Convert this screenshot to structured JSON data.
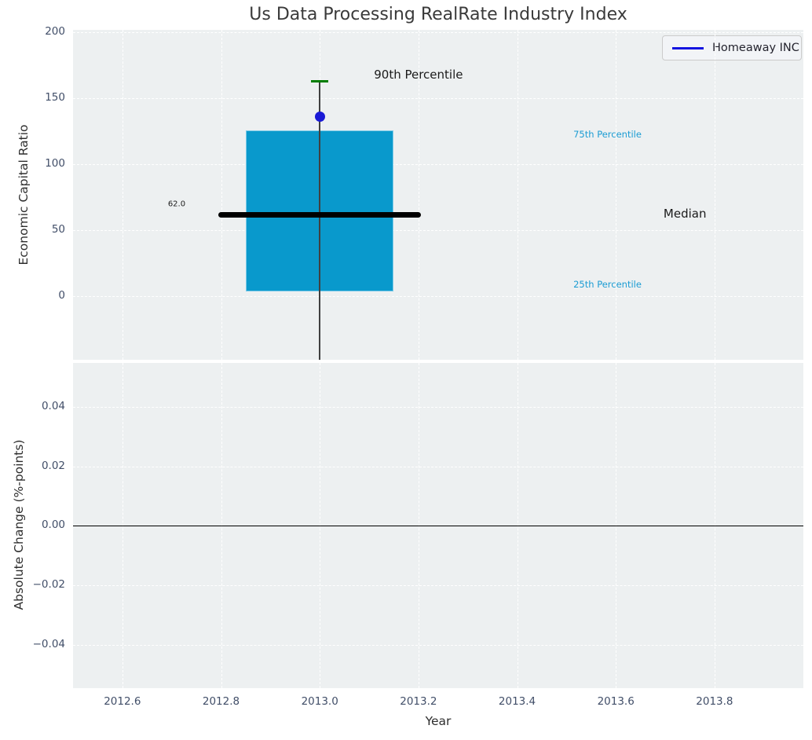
{
  "title": "Us Data Processing RealRate Industry Index",
  "legend": {
    "label": "Homeaway INC"
  },
  "colors": {
    "plot_bg": "#edf0f1",
    "grid": "#ffffff",
    "box_fill": "#0999cc",
    "box_edge": "#7ecbe8",
    "median_line": "#000000",
    "whisker": "#404040",
    "cap_90th": "#007d00",
    "company_point": "#1a1ad6",
    "legend_line": "#1414e0",
    "legend_bg": "#f2f4f7",
    "legend_border": "#cbcbcb",
    "legend_text": "#24242e",
    "tick_label": "#414e68",
    "axis_label": "#2e2e2e",
    "title_color": "#3a3a3a",
    "percentile_text": "#1b9cd3",
    "annotation_text": "#1a1a1a",
    "zero_line": "#000000"
  },
  "chart_data": [
    {
      "type": "boxplot",
      "ylabel": "Economic Capital Ratio",
      "xlim": [
        2012.5,
        2013.98
      ],
      "ylim": [
        -48,
        202
      ],
      "xtick_values": [
        2012.6,
        2012.8,
        2013.0,
        2013.2,
        2013.4,
        2013.6,
        2013.8
      ],
      "yticks": [
        {
          "v": 0,
          "label": "0"
        },
        {
          "v": 50,
          "label": "50"
        },
        {
          "v": 100,
          "label": "100"
        },
        {
          "v": 150,
          "label": "150"
        },
        {
          "v": 200,
          "label": "200"
        }
      ],
      "box": {
        "center_x": 2013.0,
        "left_x": 2012.85,
        "right_x": 2013.15,
        "q1": 4,
        "q3": 126,
        "median": 62.0,
        "p90": 163,
        "whisker_bottom": -48,
        "cap_half_width_years": 0.0175
      },
      "median_line": {
        "x_left": 2012.8,
        "x_right": 2013.2,
        "y": 62.0
      },
      "company_point": {
        "x": 2013.0,
        "y": 136,
        "name": "Homeaway INC"
      },
      "annotations": [
        {
          "name": "90th-percentile-label",
          "text": "90th Percentile",
          "x": 2013.2,
          "y": 168,
          "size": 15,
          "color": "annotation_text"
        },
        {
          "name": "median-value-label",
          "text": "62.0",
          "x": 2012.71,
          "y": 70,
          "size": 10,
          "color": "annotation_text"
        },
        {
          "name": "75th-percentile-label",
          "text": "75th Percentile",
          "x": 2013.583,
          "y": 123,
          "size": 11.5,
          "color": "percentile_text"
        },
        {
          "name": "median-label",
          "text": "Median",
          "x": 2013.74,
          "y": 63,
          "size": 15,
          "color": "annotation_text"
        },
        {
          "name": "25th-percentile-label",
          "text": "25th Percentile",
          "x": 2013.583,
          "y": 9,
          "size": 11.5,
          "color": "percentile_text"
        }
      ]
    },
    {
      "type": "line",
      "ylabel": "Absolute Change (%-points)",
      "xlabel": "Year",
      "xlim": [
        2012.5,
        2013.98
      ],
      "ylim": [
        -0.0545,
        0.0547
      ],
      "xticks": [
        {
          "v": 2012.6,
          "label": "2012.6"
        },
        {
          "v": 2012.8,
          "label": "2012.8"
        },
        {
          "v": 2013.0,
          "label": "2013.0"
        },
        {
          "v": 2013.2,
          "label": "2013.2"
        },
        {
          "v": 2013.4,
          "label": "2013.4"
        },
        {
          "v": 2013.6,
          "label": "2013.6"
        },
        {
          "v": 2013.8,
          "label": "2013.8"
        }
      ],
      "yticks": [
        {
          "v": 0.04,
          "label": "0.04"
        },
        {
          "v": 0.02,
          "label": "0.02"
        },
        {
          "v": 0.0,
          "label": "0.00"
        },
        {
          "v": -0.02,
          "label": "−0.02"
        },
        {
          "v": -0.04,
          "label": "−0.04"
        }
      ],
      "zero_line_y": 0.0
    }
  ]
}
